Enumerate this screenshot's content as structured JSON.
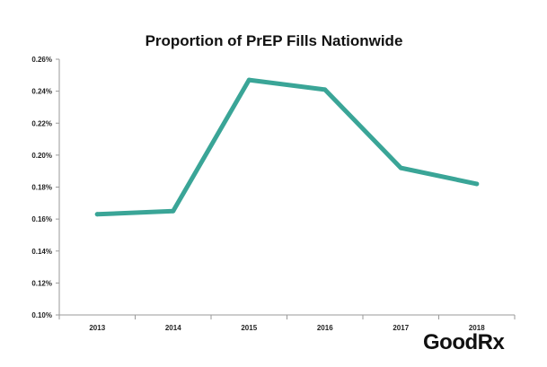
{
  "chart_data": {
    "type": "line",
    "title": "Proportion of PrEP Fills Nationwide",
    "xlabel": "",
    "ylabel": "",
    "categories": [
      "2013",
      "2014",
      "2015",
      "2016",
      "2017",
      "2018"
    ],
    "series": [
      {
        "name": "Proportion of PrEP Fills",
        "values": [
          0.163,
          0.165,
          0.247,
          0.241,
          0.192,
          0.182
        ],
        "color": "#3aa597"
      }
    ],
    "ylim": [
      0.1,
      0.26
    ],
    "yticks": [
      0.1,
      0.12,
      0.14,
      0.16,
      0.18,
      0.2,
      0.22,
      0.24,
      0.26
    ],
    "ytick_labels": [
      "0.10%",
      "0.12%",
      "0.14%",
      "0.16%",
      "0.18%",
      "0.20%",
      "0.22%",
      "0.24%",
      "0.26%"
    ],
    "grid": false,
    "legend": "none"
  },
  "branding": {
    "logo_text": "GoodRx"
  }
}
